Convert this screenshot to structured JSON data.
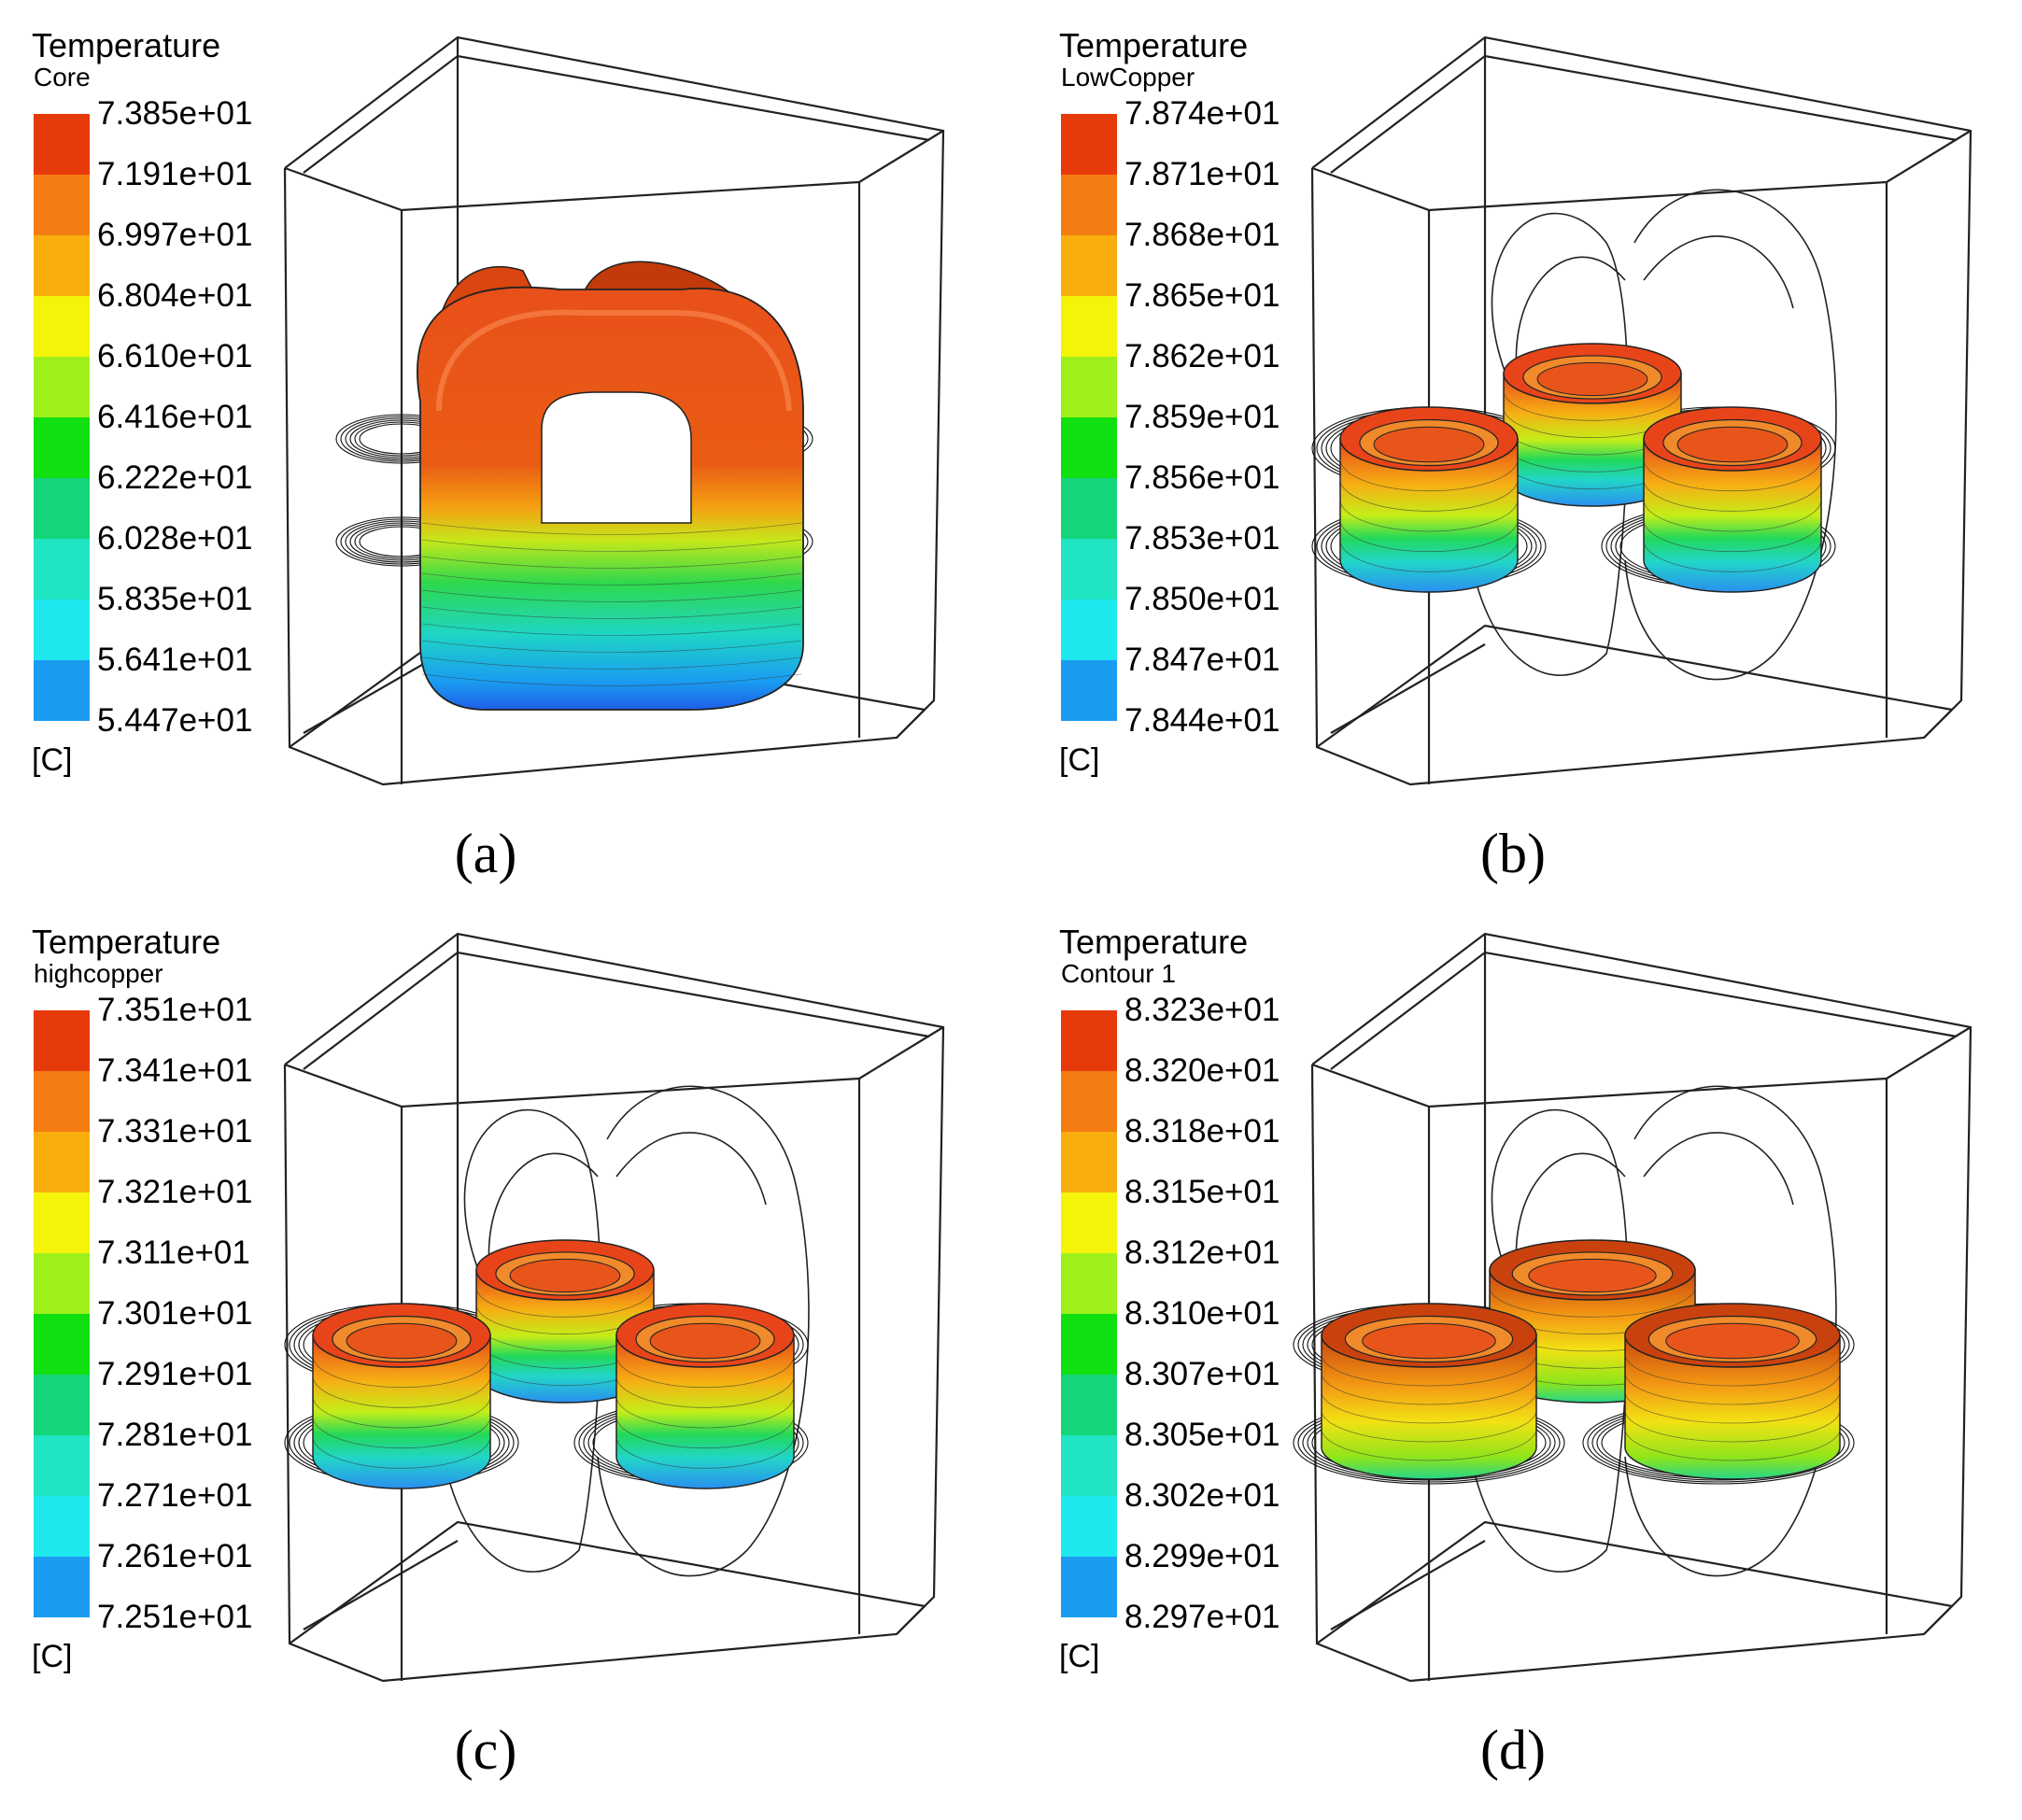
{
  "panels": [
    {
      "id": "a",
      "title": "Temperature",
      "subtitle": "Core",
      "unit": "[C]",
      "caption": "(a)",
      "ticks": [
        "7.385e+01",
        "7.191e+01",
        "6.997e+01",
        "6.804e+01",
        "6.610e+01",
        "6.416e+01",
        "6.222e+01",
        "6.028e+01",
        "5.835e+01",
        "5.641e+01",
        "5.447e+01"
      ],
      "object": "core"
    },
    {
      "id": "b",
      "title": "Temperature",
      "subtitle": "LowCopper",
      "unit": "[C]",
      "caption": "(b)",
      "ticks": [
        "7.874e+01",
        "7.871e+01",
        "7.868e+01",
        "7.865e+01",
        "7.862e+01",
        "7.859e+01",
        "7.856e+01",
        "7.853e+01",
        "7.850e+01",
        "7.847e+01",
        "7.844e+01"
      ],
      "object": "low-copper-windings"
    },
    {
      "id": "c",
      "title": "Temperature",
      "subtitle": "highcopper",
      "unit": "[C]",
      "caption": "(c)",
      "ticks": [
        "7.351e+01",
        "7.341e+01",
        "7.331e+01",
        "7.321e+01",
        "7.311e+01",
        "7.301e+01",
        "7.291e+01",
        "7.281e+01",
        "7.271e+01",
        "7.261e+01",
        "7.251e+01"
      ],
      "object": "high-copper-windings"
    },
    {
      "id": "d",
      "title": "Temperature",
      "subtitle": "Contour 1",
      "unit": "[C]",
      "caption": "(d)",
      "ticks": [
        "8.323e+01",
        "8.320e+01",
        "8.318e+01",
        "8.315e+01",
        "8.312e+01",
        "8.310e+01",
        "8.307e+01",
        "8.305e+01",
        "8.302e+01",
        "8.299e+01",
        "8.297e+01"
      ],
      "object": "all-windings"
    }
  ],
  "colormap": [
    "#e63a0a",
    "#f57c13",
    "#f9ae0e",
    "#f4f40a",
    "#9ef01a",
    "#10df10",
    "#15d57a",
    "#1fe5c2",
    "#1ee8ee",
    "#1a9cf0",
    "#1230ee"
  ]
}
